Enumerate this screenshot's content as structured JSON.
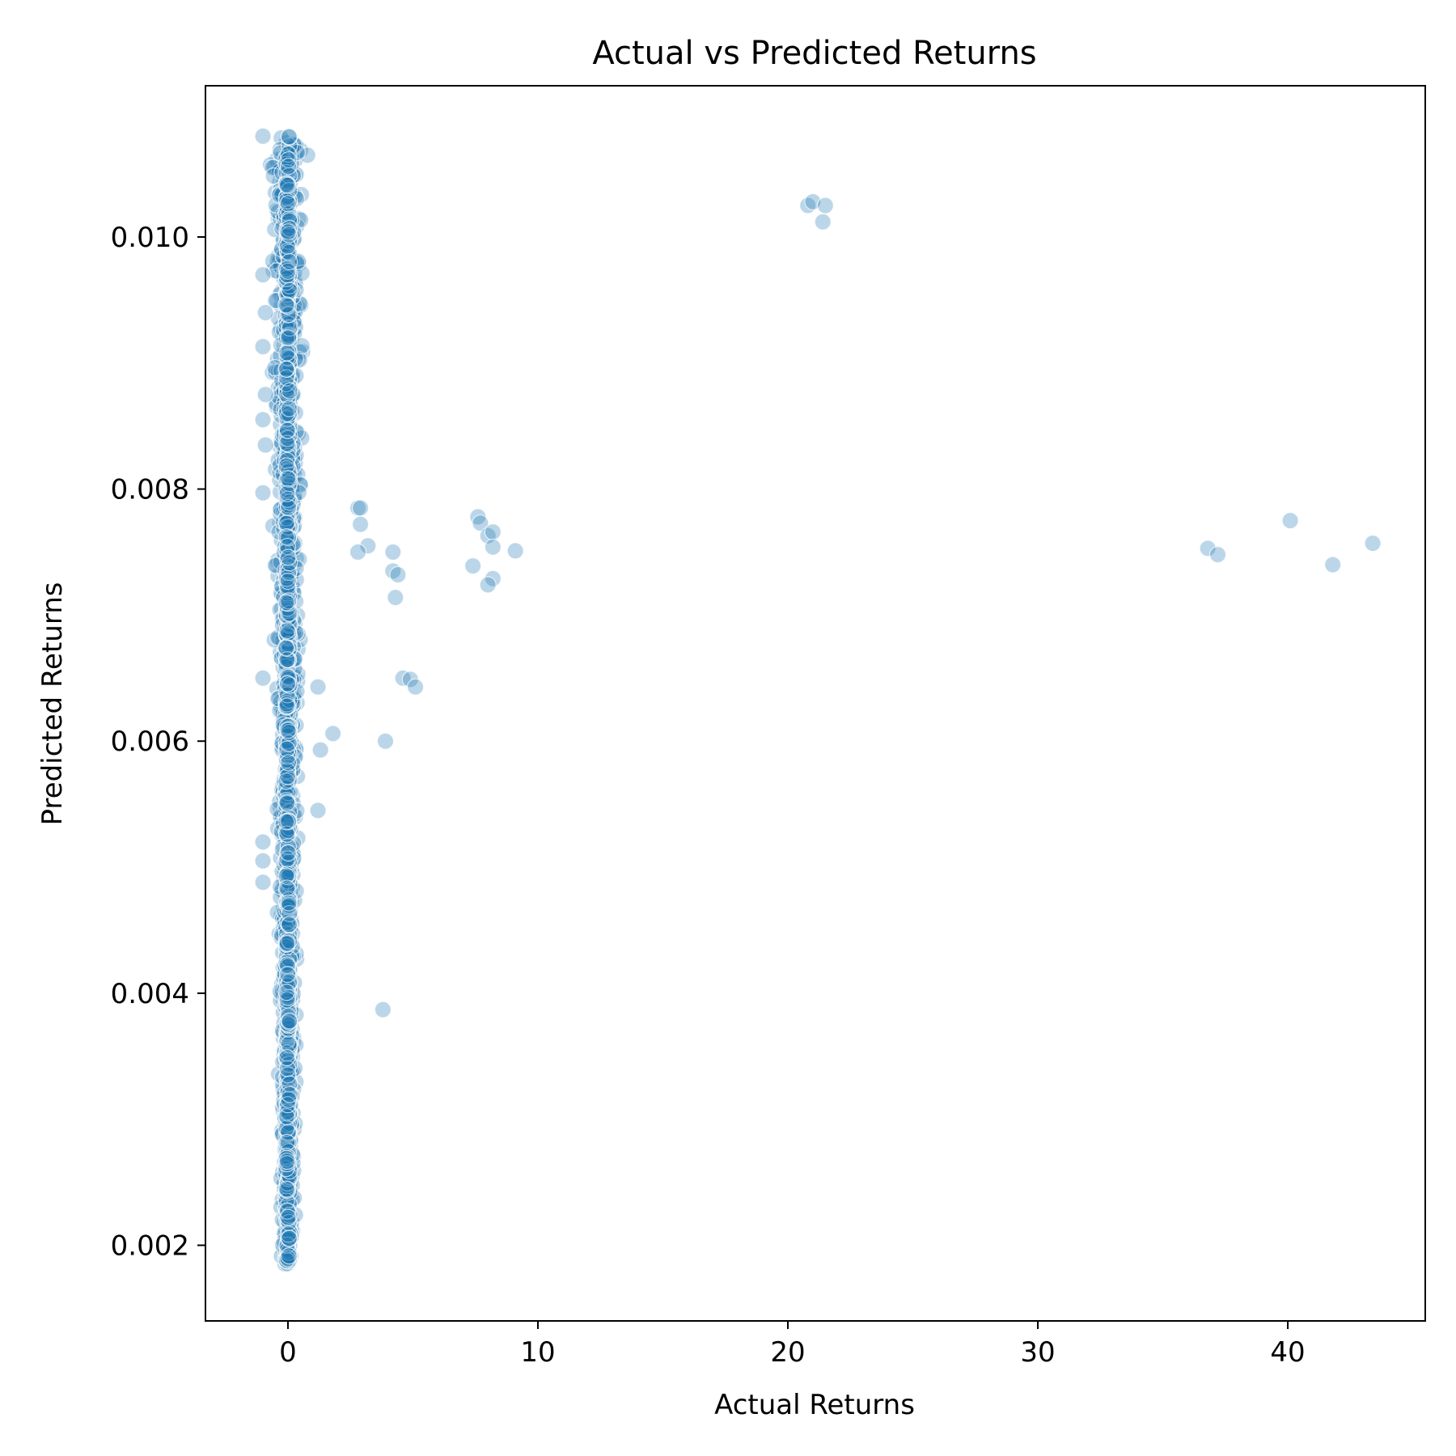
{
  "chart_data": {
    "type": "scatter",
    "title": "Actual vs Predicted Returns",
    "xlabel": "Actual Returns",
    "ylabel": "Predicted Returns",
    "xlim": [
      -3.3,
      45.5
    ],
    "ylim": [
      0.0014,
      0.0112
    ],
    "xticks": [
      0,
      10,
      20,
      30,
      40
    ],
    "yticks": [
      0.002,
      0.004,
      0.006,
      0.008,
      0.01
    ],
    "xtick_labels": [
      "0",
      "10",
      "20",
      "30",
      "40"
    ],
    "ytick_labels": [
      "0.002",
      "0.004",
      "0.006",
      "0.008",
      "0.010"
    ],
    "grid": false,
    "color": "#1f77b4",
    "dense_cluster": {
      "description_x_range": [
        -1.0,
        1.0
      ],
      "y_range": [
        0.00185,
        0.0108
      ]
    },
    "points": [
      {
        "x": 20.8,
        "y": 0.01025
      },
      {
        "x": 21.0,
        "y": 0.01028
      },
      {
        "x": 21.5,
        "y": 0.01025
      },
      {
        "x": 21.4,
        "y": 0.01012
      },
      {
        "x": 2.8,
        "y": 0.00785
      },
      {
        "x": 2.9,
        "y": 0.00785
      },
      {
        "x": 2.9,
        "y": 0.00772
      },
      {
        "x": 3.2,
        "y": 0.00755
      },
      {
        "x": 2.8,
        "y": 0.0075
      },
      {
        "x": 4.2,
        "y": 0.0075
      },
      {
        "x": 4.2,
        "y": 0.00735
      },
      {
        "x": 4.4,
        "y": 0.00732
      },
      {
        "x": 4.3,
        "y": 0.00714
      },
      {
        "x": 4.6,
        "y": 0.0065
      },
      {
        "x": 4.9,
        "y": 0.00649
      },
      {
        "x": 5.1,
        "y": 0.00643
      },
      {
        "x": 3.9,
        "y": 0.006
      },
      {
        "x": 3.8,
        "y": 0.00387
      },
      {
        "x": 1.8,
        "y": 0.00606
      },
      {
        "x": 1.3,
        "y": 0.00593
      },
      {
        "x": 1.2,
        "y": 0.00545
      },
      {
        "x": 1.2,
        "y": 0.00643
      },
      {
        "x": 7.6,
        "y": 0.00778
      },
      {
        "x": 7.7,
        "y": 0.00773
      },
      {
        "x": 8.0,
        "y": 0.00763
      },
      {
        "x": 8.2,
        "y": 0.00766
      },
      {
        "x": 8.2,
        "y": 0.00754
      },
      {
        "x": 7.4,
        "y": 0.00739
      },
      {
        "x": 9.1,
        "y": 0.00751
      },
      {
        "x": 8.2,
        "y": 0.00729
      },
      {
        "x": 8.0,
        "y": 0.00724
      },
      {
        "x": 36.8,
        "y": 0.00753
      },
      {
        "x": 37.2,
        "y": 0.00748
      },
      {
        "x": 40.1,
        "y": 0.00775
      },
      {
        "x": 41.8,
        "y": 0.0074
      },
      {
        "x": 43.4,
        "y": 0.00757
      },
      {
        "x": -1.0,
        "y": 0.0108
      },
      {
        "x": -1.0,
        "y": 0.0097
      },
      {
        "x": -0.9,
        "y": 0.0094
      },
      {
        "x": -1.0,
        "y": 0.00913
      },
      {
        "x": -0.9,
        "y": 0.00875
      },
      {
        "x": -1.0,
        "y": 0.00855
      },
      {
        "x": -0.9,
        "y": 0.00835
      },
      {
        "x": -1.0,
        "y": 0.00797
      },
      {
        "x": -1.0,
        "y": 0.0065
      },
      {
        "x": -1.0,
        "y": 0.0052
      },
      {
        "x": -1.0,
        "y": 0.00505
      },
      {
        "x": -1.0,
        "y": 0.00488
      }
    ]
  }
}
